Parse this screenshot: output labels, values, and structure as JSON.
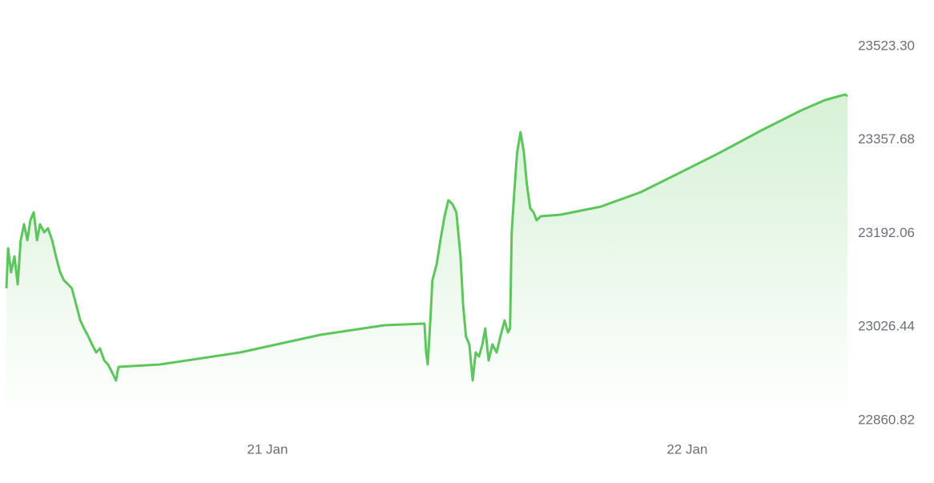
{
  "chart_data": {
    "type": "area",
    "color": "#5cc65c",
    "x": [
      20.378,
      20.382,
      20.389,
      20.397,
      20.405,
      20.412,
      20.42,
      20.428,
      20.435,
      20.443,
      20.451,
      20.458,
      20.468,
      20.477,
      20.487,
      20.496,
      20.506,
      20.515,
      20.525,
      20.534,
      20.544,
      20.554,
      20.563,
      20.573,
      20.582,
      20.592,
      20.601,
      20.611,
      20.62,
      20.63,
      20.639,
      20.645,
      20.744,
      20.935,
      21.126,
      21.279,
      21.374,
      21.378,
      21.382,
      21.388,
      21.393,
      21.403,
      21.412,
      21.422,
      21.431,
      21.441,
      21.45,
      21.46,
      21.466,
      21.473,
      21.481,
      21.489,
      21.496,
      21.504,
      21.512,
      21.519,
      21.527,
      21.536,
      21.546,
      21.555,
      21.565,
      21.573,
      21.578,
      21.582,
      21.588,
      21.595,
      21.603,
      21.611,
      21.618,
      21.626,
      21.634,
      21.641,
      21.651,
      21.699,
      21.794,
      21.889,
      21.985,
      22.08,
      22.176,
      22.271,
      22.328,
      22.376,
      22.382
    ],
    "values": [
      23094.89,
      23165.82,
      23123.26,
      23151.63,
      23101.98,
      23180.01,
      23208.38,
      23180.01,
      23215.47,
      23229.66,
      23180.01,
      23208.38,
      23194.19,
      23201.28,
      23180.01,
      23151.63,
      23123.26,
      23109.08,
      23101.98,
      23094.89,
      23066.52,
      23038.15,
      23023.96,
      23009.77,
      22995.59,
      22981.4,
      22988.49,
      22967.22,
      22960.12,
      22945.94,
      22931.75,
      22955.87,
      22960.12,
      22981.4,
      23012.61,
      23029.63,
      23032.47,
      22981.4,
      22960.12,
      23038.15,
      23109.08,
      23137.45,
      23180.01,
      23222.56,
      23250.94,
      23243.84,
      23229.66,
      23151.63,
      23066.52,
      23009.77,
      22995.59,
      22931.75,
      22981.4,
      22974.31,
      22995.59,
      23023.96,
      22967.22,
      22995.59,
      22981.4,
      23009.77,
      23038.15,
      23016.87,
      23023.96,
      23194.19,
      23265.12,
      23336.05,
      23371.52,
      23336.05,
      23279.31,
      23236.75,
      23229.66,
      23215.47,
      23222.56,
      23225.4,
      23239.59,
      23265.12,
      23300.59,
      23336.05,
      23374.35,
      23409.82,
      23428.26,
      23438.19,
      23435.35
    ],
    "xlim": [
      20.378,
      22.382
    ],
    "xticks": [
      {
        "value": 21,
        "label": "21 Jan"
      },
      {
        "value": 22,
        "label": "22 Jan"
      }
    ],
    "ylim": [
      22860.82,
      23523.3
    ],
    "yticks": [
      22860.82,
      23026.44,
      23192.06,
      23357.68,
      {
        "value": 23523.3,
        "label": "23523.30"
      }
    ]
  }
}
